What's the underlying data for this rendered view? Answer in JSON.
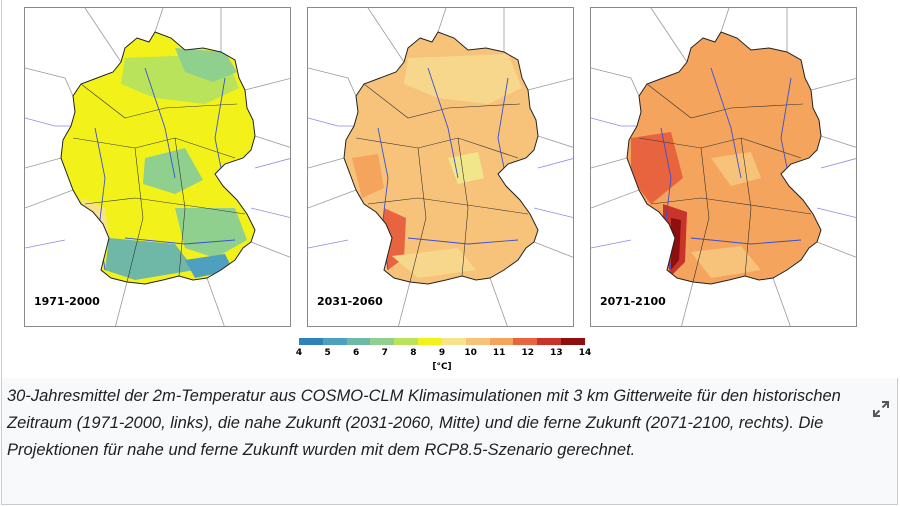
{
  "panels": [
    {
      "label": "1971-2000",
      "scheme": "cool"
    },
    {
      "label": "2031-2060",
      "scheme": "warm"
    },
    {
      "label": "2071-2100",
      "scheme": "hot"
    }
  ],
  "colorbar": {
    "ticks": [
      "4",
      "5",
      "6",
      "7",
      "8",
      "9",
      "10",
      "11",
      "12",
      "13",
      "14"
    ],
    "unit": "[°C]",
    "colors": [
      "#2b83ba",
      "#4f9fbf",
      "#6fb7a7",
      "#8fd08f",
      "#b9e35a",
      "#f2f21a",
      "#f7e38a",
      "#f7c27a",
      "#f4a45c",
      "#e8643f",
      "#c8332a",
      "#8e0f0f"
    ]
  },
  "caption": {
    "text": "30-Jahresmittel der 2m-Temperatur aus COSMO-CLM Klimasimulationen mit 3 km Gitterweite für den historischen Zeitraum (1971-2000, links), die nahe Zukunft (2031-2060, Mitte) und die ferne Zukunft (2071-2100, rechts). Die Projektionen für nahe und ferne Zukunft wurden mit dem RCP8.5-Szenario gerechnet."
  },
  "expand_icon": "expand-arrows-icon"
}
